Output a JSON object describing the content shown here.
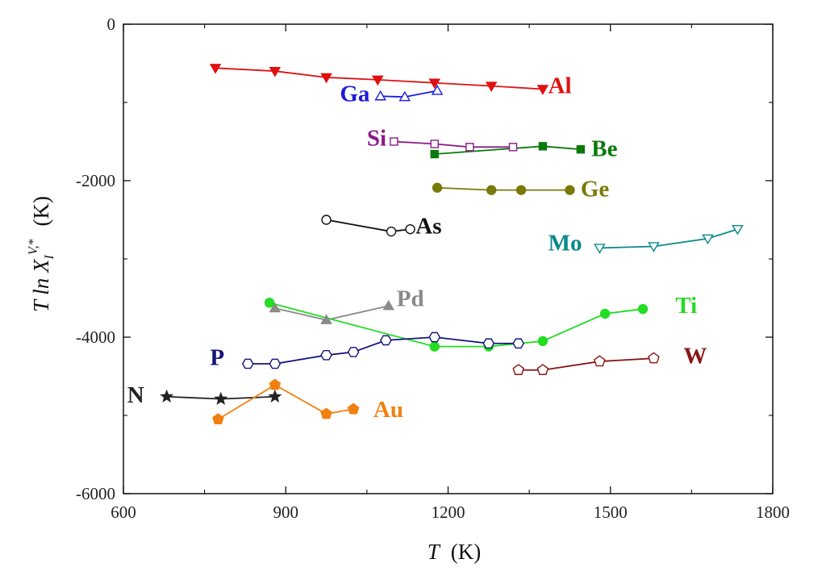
{
  "chart_data": {
    "type": "scatter",
    "title": "",
    "xlabel": "T",
    "xlabel_unit": "(K)",
    "ylabel": "T ln X",
    "ylabel_sub": "I",
    "ylabel_sup": "V,*",
    "ylabel_unit": "(K)",
    "xlim": [
      600,
      1800
    ],
    "ylim": [
      -6000,
      0
    ],
    "x_ticks": [
      600,
      900,
      1200,
      1500,
      1800
    ],
    "y_ticks": [
      0,
      -2000,
      -4000,
      -6000
    ],
    "x_tick_labels": [
      "600",
      "900",
      "1200",
      "1500",
      "1800"
    ],
    "y_tick_labels": [
      "0",
      "-2000",
      "-4000",
      "-6000"
    ],
    "grid": false,
    "legend": "none (series labelled inline)",
    "series": [
      {
        "name": "Al",
        "color": "#e01010",
        "marker": "triangle-down",
        "filled": true,
        "x": [
          770,
          880,
          975,
          1070,
          1175,
          1280,
          1375
        ],
        "y": [
          -560,
          -600,
          -680,
          -710,
          -750,
          -790,
          -830
        ]
      },
      {
        "name": "Ga",
        "color": "#1a1add",
        "marker": "triangle-up",
        "filled": false,
        "x": [
          1075,
          1120,
          1180
        ],
        "y": [
          -920,
          -930,
          -850
        ]
      },
      {
        "name": "Si",
        "color": "#8a1a8a",
        "marker": "square",
        "filled": false,
        "x": [
          1100,
          1175,
          1240,
          1320
        ],
        "y": [
          -1500,
          -1530,
          -1570,
          -1570
        ]
      },
      {
        "name": "Be",
        "color": "#0a7a0a",
        "marker": "square",
        "filled": true,
        "x": [
          1175,
          1375,
          1445
        ],
        "y": [
          -1660,
          -1560,
          -1600
        ]
      },
      {
        "name": "Ge",
        "color": "#7a7a0a",
        "marker": "circle",
        "filled": true,
        "x": [
          1180,
          1280,
          1335,
          1425
        ],
        "y": [
          -2090,
          -2120,
          -2120,
          -2120
        ]
      },
      {
        "name": "As",
        "color": "#111111",
        "marker": "circle",
        "filled": false,
        "x": [
          975,
          1095,
          1130
        ],
        "y": [
          -2500,
          -2650,
          -2620
        ]
      },
      {
        "name": "Mo",
        "color": "#0a8a8a",
        "marker": "triangle-down",
        "filled": false,
        "x": [
          1480,
          1580,
          1680,
          1735
        ],
        "y": [
          -2860,
          -2840,
          -2740,
          -2620
        ]
      },
      {
        "name": "Pd",
        "color": "#8a8a8a",
        "marker": "triangle-up",
        "filled": true,
        "x": [
          880,
          975,
          1090
        ],
        "y": [
          -3630,
          -3780,
          -3600
        ]
      },
      {
        "name": "Ti",
        "color": "#22dd22",
        "marker": "circle",
        "filled": true,
        "x": [
          870,
          1175,
          1275,
          1375,
          1490,
          1560
        ],
        "y": [
          -3560,
          -4120,
          -4120,
          -4050,
          -3700,
          -3640
        ]
      },
      {
        "name": "P",
        "color": "#14147a",
        "marker": "hexagon",
        "filled": false,
        "x": [
          830,
          880,
          975,
          1025,
          1085,
          1175,
          1275,
          1330
        ],
        "y": [
          -4340,
          -4340,
          -4230,
          -4190,
          -4040,
          -4000,
          -4080,
          -4080
        ]
      },
      {
        "name": "W",
        "color": "#8a1414",
        "marker": "pentagon",
        "filled": false,
        "x": [
          1330,
          1375,
          1480,
          1580
        ],
        "y": [
          -4420,
          -4420,
          -4310,
          -4270
        ]
      },
      {
        "name": "N",
        "color": "#222222",
        "marker": "star",
        "filled": true,
        "x": [
          680,
          780,
          880
        ],
        "y": [
          -4760,
          -4790,
          -4760
        ]
      },
      {
        "name": "Au",
        "color": "#f08010",
        "marker": "pentagon",
        "filled": true,
        "x": [
          775,
          880,
          975,
          1025
        ],
        "y": [
          -5050,
          -4610,
          -4980,
          -4920
        ]
      }
    ],
    "labels": [
      {
        "series": "Al",
        "text": "Al",
        "x": 1385,
        "y": -780,
        "color": "#e01010"
      },
      {
        "series": "Ga",
        "text": "Ga",
        "x": 1000,
        "y": -880,
        "color": "#1a1add"
      },
      {
        "series": "Si",
        "text": "Si",
        "x": 1050,
        "y": -1450,
        "color": "#8a1a8a"
      },
      {
        "series": "Be",
        "text": "Be",
        "x": 1465,
        "y": -1580,
        "color": "#0a7a0a"
      },
      {
        "series": "Ge",
        "text": "Ge",
        "x": 1445,
        "y": -2100,
        "color": "#7a7a0a"
      },
      {
        "series": "As",
        "text": "As",
        "x": 1140,
        "y": -2570,
        "color": "#111111"
      },
      {
        "series": "Mo",
        "text": "Mo",
        "x": 1385,
        "y": -2790,
        "color": "#0a8a8a"
      },
      {
        "series": "Pd",
        "text": "Pd",
        "x": 1105,
        "y": -3500,
        "color": "#8a8a8a"
      },
      {
        "series": "Ti",
        "text": "Ti",
        "x": 1620,
        "y": -3590,
        "color": "#22dd22"
      },
      {
        "series": "P",
        "text": "P",
        "x": 760,
        "y": -4250,
        "color": "#14147a"
      },
      {
        "series": "W",
        "text": "W",
        "x": 1635,
        "y": -4230,
        "color": "#8a1414"
      },
      {
        "series": "N",
        "text": "N",
        "x": 607,
        "y": -4730,
        "color": "#222222"
      },
      {
        "series": "Au",
        "text": "Au",
        "x": 1062,
        "y": -4920,
        "color": "#f08010"
      }
    ]
  }
}
